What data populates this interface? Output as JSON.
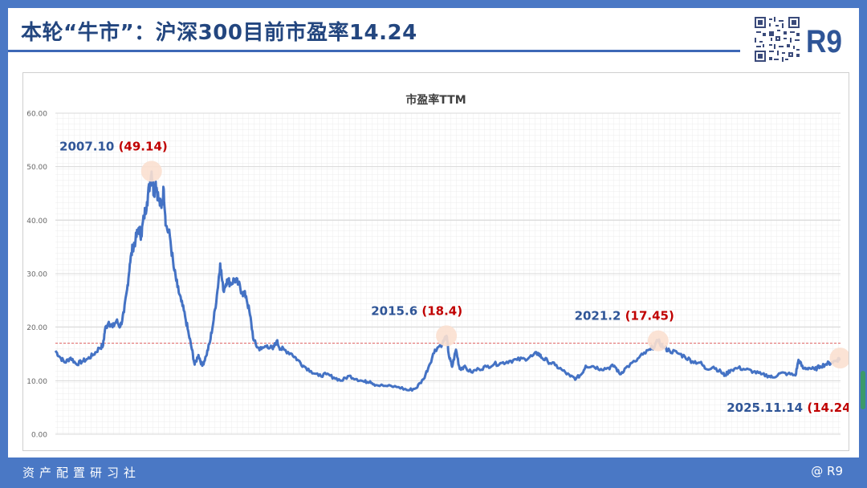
{
  "header": {
    "title": "本轮“牛市”：沪深300目前市盈率14.24",
    "brand": "R9",
    "qr_icon": "qr-code-icon"
  },
  "footer": {
    "left": "资产配置研习社",
    "right": "@ R9"
  },
  "colors": {
    "background": "#4a78c5",
    "title": "#23467f",
    "line": "#4472c4",
    "annotation_date": "#2f5597",
    "annotation_value": "#c00000",
    "reference_line": "#e06060",
    "marker": "#fbe0d0"
  },
  "chart_data": {
    "type": "line",
    "title": "市盈率TTM",
    "xlabel": "",
    "ylabel": "",
    "ylim": [
      0,
      60
    ],
    "yticks": [
      "0.00",
      "10.00",
      "20.00",
      "30.00",
      "40.00",
      "50.00",
      "60.00"
    ],
    "grid": true,
    "reference_line": 17.0,
    "x_range": [
      2005.3,
      2025.88
    ],
    "series": [
      {
        "values": [
          [
            2005.3,
            15.6
          ],
          [
            2005.42,
            14.4
          ],
          [
            2005.55,
            13.4
          ],
          [
            2005.7,
            14.3
          ],
          [
            2005.85,
            13.1
          ],
          [
            2006.0,
            13.6
          ],
          [
            2006.15,
            14.1
          ],
          [
            2006.3,
            14.9
          ],
          [
            2006.45,
            16.1
          ],
          [
            2006.55,
            16.6
          ],
          [
            2006.6,
            19.6
          ],
          [
            2006.7,
            21.0
          ],
          [
            2006.8,
            20.0
          ],
          [
            2006.9,
            21.2
          ],
          [
            2007.0,
            20.1
          ],
          [
            2007.1,
            22.8
          ],
          [
            2007.18,
            27.0
          ],
          [
            2007.25,
            31.8
          ],
          [
            2007.33,
            35.0
          ],
          [
            2007.4,
            36.2
          ],
          [
            2007.48,
            38.5
          ],
          [
            2007.55,
            37.2
          ],
          [
            2007.62,
            40.5
          ],
          [
            2007.7,
            43.4
          ],
          [
            2007.78,
            47.0
          ],
          [
            2007.82,
            49.1
          ],
          [
            2007.88,
            45.0
          ],
          [
            2007.93,
            47.2
          ],
          [
            2008.0,
            44.0
          ],
          [
            2008.08,
            42.3
          ],
          [
            2008.14,
            45.8
          ],
          [
            2008.2,
            39.0
          ],
          [
            2008.3,
            37.0
          ],
          [
            2008.4,
            31.2
          ],
          [
            2008.5,
            27.5
          ],
          [
            2008.6,
            24.8
          ],
          [
            2008.7,
            22.0
          ],
          [
            2008.8,
            18.5
          ],
          [
            2008.88,
            15.8
          ],
          [
            2008.95,
            13.0
          ],
          [
            2009.05,
            14.8
          ],
          [
            2009.15,
            12.8
          ],
          [
            2009.25,
            14.6
          ],
          [
            2009.35,
            17.2
          ],
          [
            2009.45,
            21.4
          ],
          [
            2009.55,
            27.0
          ],
          [
            2009.62,
            31.9
          ],
          [
            2009.7,
            26.9
          ],
          [
            2009.8,
            28.9
          ],
          [
            2009.9,
            28.2
          ],
          [
            2010.0,
            29.0
          ],
          [
            2010.1,
            28.0
          ],
          [
            2010.2,
            26.5
          ],
          [
            2010.3,
            25.8
          ],
          [
            2010.4,
            22.3
          ],
          [
            2010.5,
            17.5
          ],
          [
            2010.6,
            16.2
          ],
          [
            2010.7,
            15.9
          ],
          [
            2010.85,
            16.6
          ],
          [
            2011.0,
            15.9
          ],
          [
            2011.1,
            17.4
          ],
          [
            2011.2,
            16.0
          ],
          [
            2011.3,
            15.8
          ],
          [
            2011.5,
            15.0
          ],
          [
            2011.65,
            13.9
          ],
          [
            2011.8,
            12.8
          ],
          [
            2012.0,
            11.8
          ],
          [
            2012.2,
            10.9
          ],
          [
            2012.4,
            11.2
          ],
          [
            2012.6,
            10.6
          ],
          [
            2012.8,
            10.0
          ],
          [
            2013.0,
            10.9
          ],
          [
            2013.2,
            10.3
          ],
          [
            2013.4,
            9.8
          ],
          [
            2013.55,
            9.9
          ],
          [
            2013.7,
            9.2
          ],
          [
            2014.0,
            9.0
          ],
          [
            2014.3,
            8.8
          ],
          [
            2014.55,
            8.2
          ],
          [
            2014.75,
            8.6
          ],
          [
            2014.95,
            10.3
          ],
          [
            2015.1,
            12.9
          ],
          [
            2015.25,
            15.8
          ],
          [
            2015.45,
            17.0
          ],
          [
            2015.55,
            18.4
          ],
          [
            2015.62,
            14.5
          ],
          [
            2015.7,
            12.6
          ],
          [
            2015.8,
            15.8
          ],
          [
            2015.9,
            12.2
          ],
          [
            2016.0,
            12.6
          ],
          [
            2016.2,
            11.6
          ],
          [
            2016.4,
            12.2
          ],
          [
            2016.6,
            12.6
          ],
          [
            2016.8,
            13.1
          ],
          [
            2017.0,
            13.3
          ],
          [
            2017.2,
            13.7
          ],
          [
            2017.4,
            13.9
          ],
          [
            2017.6,
            14.1
          ],
          [
            2017.8,
            14.6
          ],
          [
            2017.95,
            15.2
          ],
          [
            2018.05,
            14.3
          ],
          [
            2018.2,
            13.7
          ],
          [
            2018.4,
            12.9
          ],
          [
            2018.6,
            11.9
          ],
          [
            2018.8,
            10.8
          ],
          [
            2018.95,
            10.4
          ],
          [
            2019.1,
            11.3
          ],
          [
            2019.2,
            12.8
          ],
          [
            2019.4,
            12.7
          ],
          [
            2019.6,
            12.2
          ],
          [
            2019.8,
            12.4
          ],
          [
            2019.95,
            12.8
          ],
          [
            2020.1,
            11.2
          ],
          [
            2020.25,
            12.4
          ],
          [
            2020.5,
            13.6
          ],
          [
            2020.7,
            14.9
          ],
          [
            2020.9,
            15.8
          ],
          [
            2021.1,
            17.4
          ],
          [
            2021.25,
            16.2
          ],
          [
            2021.4,
            15.6
          ],
          [
            2021.6,
            15.2
          ],
          [
            2021.8,
            14.5
          ],
          [
            2022.0,
            13.6
          ],
          [
            2022.2,
            13.4
          ],
          [
            2022.35,
            12.2
          ],
          [
            2022.55,
            12.6
          ],
          [
            2022.75,
            11.6
          ],
          [
            2022.85,
            11.0
          ],
          [
            2023.0,
            12.0
          ],
          [
            2023.2,
            12.4
          ],
          [
            2023.4,
            12.1
          ],
          [
            2023.6,
            11.7
          ],
          [
            2023.8,
            11.2
          ],
          [
            2024.0,
            10.9
          ],
          [
            2024.1,
            10.6
          ],
          [
            2024.3,
            11.4
          ],
          [
            2024.5,
            11.3
          ],
          [
            2024.7,
            11.0
          ],
          [
            2024.78,
            13.9
          ],
          [
            2024.9,
            12.3
          ],
          [
            2025.05,
            12.4
          ],
          [
            2025.2,
            12.1
          ],
          [
            2025.35,
            12.7
          ],
          [
            2025.5,
            13.1
          ],
          [
            2025.65,
            13.4
          ],
          [
            2025.8,
            13.9
          ],
          [
            2025.87,
            14.24
          ]
        ]
      }
    ],
    "annotations": [
      {
        "date": "2007.10",
        "value": "(49.14)",
        "x": 2007.82,
        "y": 49.14,
        "label_pos": "top-left"
      },
      {
        "date": "2015.6",
        "value": "(18.4)",
        "x": 2015.55,
        "y": 18.4,
        "label_pos": "top-left"
      },
      {
        "date": "2021.2",
        "value": "(17.45)",
        "x": 2021.1,
        "y": 17.45,
        "label_pos": "top-left"
      },
      {
        "date": "2025.11.14",
        "value": "(14.24)",
        "x": 2025.87,
        "y": 14.24,
        "label_pos": "bottom-left"
      }
    ]
  }
}
